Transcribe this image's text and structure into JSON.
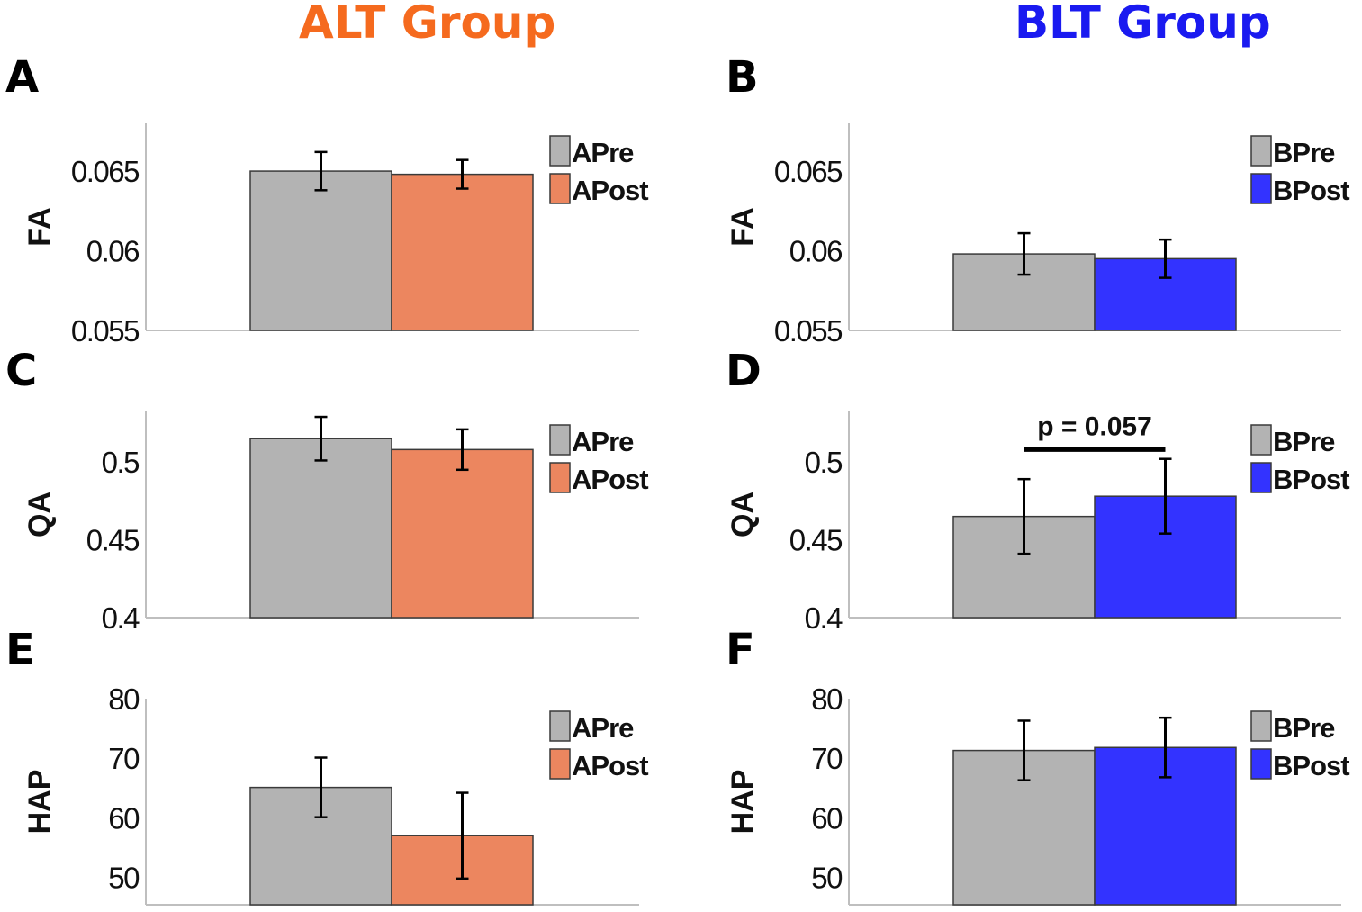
{
  "colors": {
    "alt_title": "#f56a1e",
    "blt_title": "#1a1af0",
    "pre_bar": "#b3b3b3",
    "alt_post_bar": "#ec865f",
    "blt_post_bar": "#3333ff",
    "axis": "#bfbfbf",
    "bar_edge": "#3a3a3a",
    "error_bar": "#000000"
  },
  "titles": {
    "alt": "ALT Group",
    "blt": "BLT Group"
  },
  "chart_data": [
    {
      "panel": "A",
      "type": "bar",
      "group": "ALT",
      "ylabel": "FA",
      "ylim": [
        0.055,
        0.068
      ],
      "yticks": [
        0.055,
        0.06,
        0.065
      ],
      "ytick_labels": [
        "0.055",
        "0.06",
        "0.065"
      ],
      "categories": [
        "APre",
        "APost"
      ],
      "values": [
        0.065,
        0.0648
      ],
      "errors": [
        0.0012,
        0.0009
      ],
      "legend": [
        "APre",
        "APost"
      ],
      "legend_position": "top-right",
      "colors": [
        "#b3b3b3",
        "#ec865f"
      ],
      "grid": false
    },
    {
      "panel": "B",
      "type": "bar",
      "group": "BLT",
      "ylabel": "FA",
      "ylim": [
        0.055,
        0.068
      ],
      "yticks": [
        0.055,
        0.06,
        0.065
      ],
      "ytick_labels": [
        "0.055",
        "0.06",
        "0.065"
      ],
      "categories": [
        "BPre",
        "BPost"
      ],
      "values": [
        0.0598,
        0.0595
      ],
      "errors": [
        0.0013,
        0.0012
      ],
      "legend": [
        "BPre",
        "BPost"
      ],
      "legend_position": "top-right",
      "colors": [
        "#b3b3b3",
        "#3333ff"
      ],
      "grid": false
    },
    {
      "panel": "C",
      "type": "bar",
      "group": "ALT",
      "ylabel": "QA",
      "ylim": [
        0.4,
        0.5325
      ],
      "yticks": [
        0.4,
        0.45,
        0.5
      ],
      "ytick_labels": [
        "0.4",
        "0.45",
        "0.5"
      ],
      "categories": [
        "APre",
        "APost"
      ],
      "values": [
        0.515,
        0.508
      ],
      "errors": [
        0.014,
        0.013
      ],
      "legend": [
        "APre",
        "APost"
      ],
      "legend_position": "top-right",
      "colors": [
        "#b3b3b3",
        "#ec865f"
      ],
      "grid": false
    },
    {
      "panel": "D",
      "type": "bar",
      "group": "BLT",
      "ylabel": "QA",
      "ylim": [
        0.4,
        0.5325
      ],
      "yticks": [
        0.4,
        0.45,
        0.5
      ],
      "ytick_labels": [
        "0.4",
        "0.45",
        "0.5"
      ],
      "categories": [
        "BPre",
        "BPost"
      ],
      "values": [
        0.465,
        0.478
      ],
      "errors": [
        0.024,
        0.024
      ],
      "legend": [
        "BPre",
        "BPost"
      ],
      "legend_position": "top-right",
      "colors": [
        "#b3b3b3",
        "#3333ff"
      ],
      "grid": false,
      "annotation": {
        "text": "p = 0.057",
        "bracket_y": 0.508
      }
    },
    {
      "panel": "E",
      "type": "bar",
      "group": "ALT",
      "ylabel": "HAP",
      "ylim": [
        45.4,
        80
      ],
      "yticks": [
        50,
        60,
        70,
        80
      ],
      "ytick_labels": [
        "50",
        "60",
        "70",
        "80"
      ],
      "categories": [
        "APre",
        "APost"
      ],
      "values": [
        65.1,
        57.0
      ],
      "errors": [
        5.0,
        7.2
      ],
      "legend": [
        "APre",
        "APost"
      ],
      "legend_position": "top-right",
      "colors": [
        "#b3b3b3",
        "#ec865f"
      ],
      "grid": false
    },
    {
      "panel": "F",
      "type": "bar",
      "group": "BLT",
      "ylabel": "HAP",
      "ylim": [
        45.4,
        80
      ],
      "yticks": [
        50,
        60,
        70,
        80
      ],
      "ytick_labels": [
        "50",
        "60",
        "70",
        "80"
      ],
      "categories": [
        "BPre",
        "BPost"
      ],
      "values": [
        71.3,
        71.8
      ],
      "errors": [
        5.0,
        5.0
      ],
      "legend": [
        "BPre",
        "BPost"
      ],
      "legend_position": "top-right",
      "colors": [
        "#b3b3b3",
        "#3333ff"
      ],
      "grid": false
    }
  ]
}
